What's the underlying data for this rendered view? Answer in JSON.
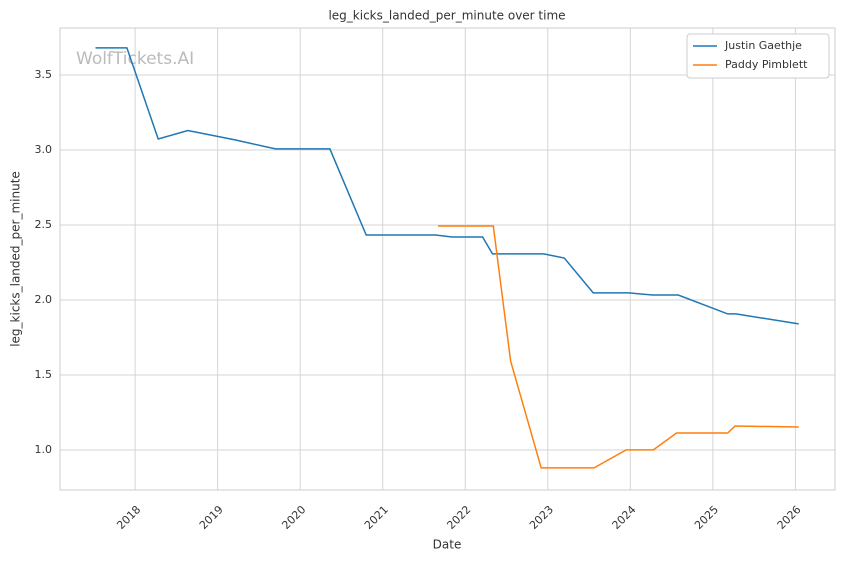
{
  "chart_data": {
    "type": "line",
    "title": "leg_kicks_landed_per_minute over time",
    "xlabel": "Date",
    "ylabel": "leg_kicks_landed_per_minute",
    "watermark": "WolfTickets.AI",
    "legend": "upper right",
    "grid": true,
    "xlim": [
      2017.09,
      2026.48
    ],
    "xticks": [
      2018,
      2019,
      2020,
      2021,
      2022,
      2023,
      2024,
      2025,
      2026
    ],
    "ylim": [
      0.733,
      3.813
    ],
    "yticks": [
      {
        "value": 1.0,
        "label": "1.0"
      },
      1.5,
      {
        "value": 2.0,
        "label": "2.0"
      },
      2.5,
      {
        "value": 3.0,
        "label": "3.0"
      },
      3.5
    ],
    "series": [
      {
        "name": "Justin Gaethje",
        "color": "#1f77b4",
        "x": [
          2017.52,
          2017.9,
          2018.28,
          2018.64,
          2019.21,
          2019.7,
          2020.36,
          2020.8,
          2021.64,
          2021.84,
          2022.21,
          2022.33,
          2022.95,
          2023.2,
          2023.55,
          2023.98,
          2024.27,
          2024.58,
          2025.18,
          2025.28,
          2026.04
        ],
        "values": [
          3.68,
          3.68,
          3.073,
          3.13,
          3.067,
          3.007,
          3.007,
          2.433,
          2.433,
          2.42,
          2.42,
          2.307,
          2.307,
          2.28,
          2.047,
          2.047,
          2.033,
          2.033,
          1.907,
          1.907,
          1.84
        ]
      },
      {
        "name": "Paddy Pimblett",
        "color": "#ff7f0e",
        "x": [
          2021.67,
          2022.34,
          2022.55,
          2022.92,
          2023.56,
          2023.95,
          2024.28,
          2024.56,
          2025.18,
          2025.27,
          2026.04
        ],
        "values": [
          2.493,
          2.493,
          1.593,
          0.88,
          0.88,
          1.0,
          1.0,
          1.113,
          1.113,
          1.16,
          1.153
        ]
      }
    ]
  }
}
